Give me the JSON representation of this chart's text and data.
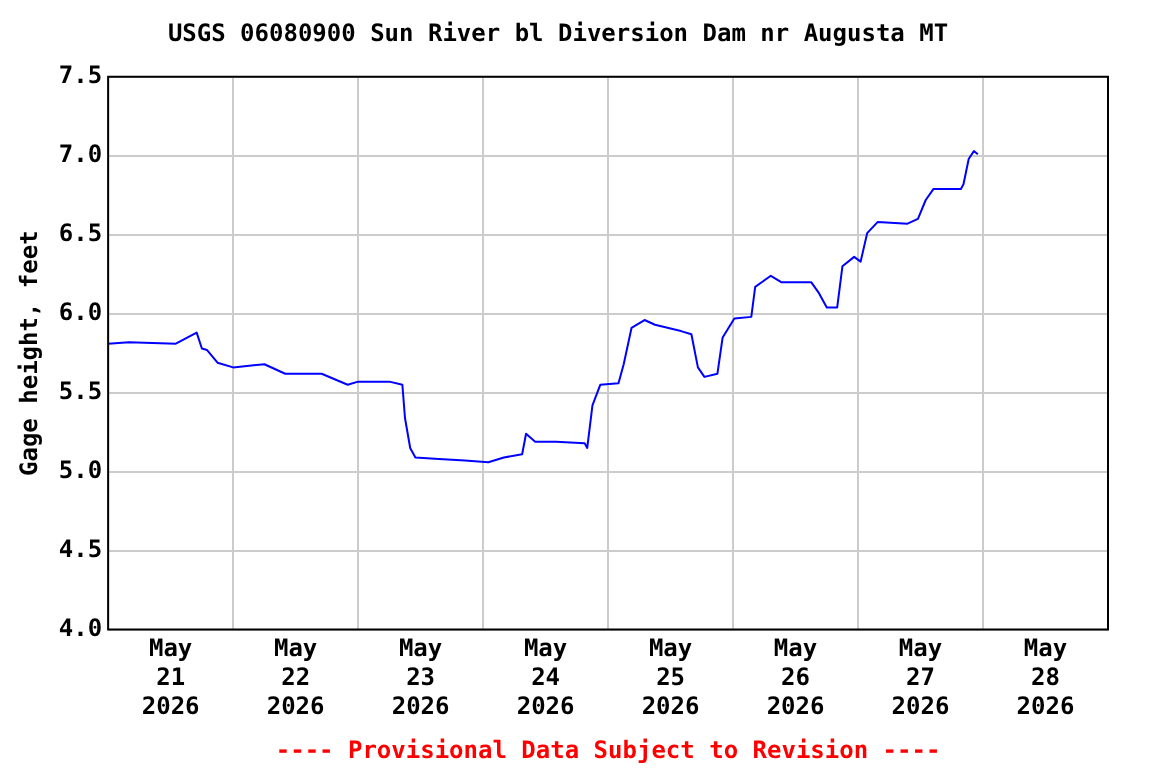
{
  "chart_data": {
    "type": "line",
    "title": "USGS 06080900 Sun River bl Diversion Dam nr Augusta MT",
    "ylabel": "Gage height, feet",
    "annotations": [
      "---- Provisional Data Subject to Revision ----"
    ],
    "x": [
      "2026-05-21T00:00",
      "2026-05-21T04:00",
      "2026-05-21T13:00",
      "2026-05-21T17:00",
      "2026-05-21T18:00",
      "2026-05-21T19:00",
      "2026-05-21T21:00",
      "2026-05-22T00:00",
      "2026-05-22T06:00",
      "2026-05-22T10:00",
      "2026-05-22T17:00",
      "2026-05-22T22:00",
      "2026-05-23T00:00",
      "2026-05-23T06:00",
      "2026-05-23T08:30",
      "2026-05-23T09:00",
      "2026-05-23T10:00",
      "2026-05-23T11:00",
      "2026-05-23T15:30",
      "2026-05-23T20:30",
      "2026-05-24T01:00",
      "2026-05-24T04:00",
      "2026-05-24T07:30",
      "2026-05-24T08:15",
      "2026-05-24T10:00",
      "2026-05-24T14:00",
      "2026-05-24T19:30",
      "2026-05-24T20:00",
      "2026-05-24T21:00",
      "2026-05-24T22:30",
      "2026-05-25T02:00",
      "2026-05-25T03:00",
      "2026-05-25T04:30",
      "2026-05-25T07:00",
      "2026-05-25T09:00",
      "2026-05-25T14:00",
      "2026-05-25T16:00",
      "2026-05-25T17:15",
      "2026-05-25T18:30",
      "2026-05-25T21:00",
      "2026-05-25T22:00",
      "2026-05-26T00:15",
      "2026-05-26T03:30",
      "2026-05-26T04:15",
      "2026-05-26T07:15",
      "2026-05-26T09:15",
      "2026-05-26T15:00",
      "2026-05-26T16:30",
      "2026-05-26T18:00",
      "2026-05-26T20:00",
      "2026-05-26T21:00",
      "2026-05-26T23:15",
      "2026-05-27T00:30",
      "2026-05-27T01:45",
      "2026-05-27T03:45",
      "2026-05-27T09:30",
      "2026-05-27T11:30",
      "2026-05-27T13:00",
      "2026-05-27T14:30",
      "2026-05-27T19:45",
      "2026-05-27T20:15",
      "2026-05-27T21:15",
      "2026-05-27T22:15",
      "2026-05-27T23:00"
    ],
    "series": [
      {
        "color": "#0000ff",
        "values": [
          5.81,
          5.82,
          5.81,
          5.88,
          5.78,
          5.77,
          5.69,
          5.66,
          5.68,
          5.62,
          5.62,
          5.55,
          5.57,
          5.57,
          5.55,
          5.34,
          5.15,
          5.09,
          5.08,
          5.07,
          5.06,
          5.09,
          5.11,
          5.24,
          5.19,
          5.19,
          5.18,
          5.15,
          5.42,
          5.55,
          5.56,
          5.68,
          5.91,
          5.96,
          5.93,
          5.89,
          5.87,
          5.66,
          5.6,
          5.62,
          5.85,
          5.97,
          5.98,
          6.17,
          6.24,
          6.2,
          6.2,
          6.13,
          6.04,
          6.04,
          6.3,
          6.36,
          6.33,
          6.51,
          6.58,
          6.57,
          6.6,
          6.72,
          6.79,
          6.79,
          6.82,
          6.98,
          7.03,
          7.01
        ]
      }
    ],
    "xlim": [
      "2026-05-21T00:00",
      "2026-05-29T00:00"
    ],
    "xticks": [
      {
        "value": "2026-05-21T00:00",
        "label": null
      },
      {
        "value": "2026-05-21T12:00",
        "label": "May\n21\n2026"
      },
      {
        "value": "2026-05-22T00:00",
        "label": null
      },
      {
        "value": "2026-05-22T12:00",
        "label": "May\n22\n2026"
      },
      {
        "value": "2026-05-23T00:00",
        "label": null
      },
      {
        "value": "2026-05-23T12:00",
        "label": "May\n23\n2026"
      },
      {
        "value": "2026-05-24T00:00",
        "label": null
      },
      {
        "value": "2026-05-24T12:00",
        "label": "May\n24\n2026"
      },
      {
        "value": "2026-05-25T00:00",
        "label": null
      },
      {
        "value": "2026-05-25T12:00",
        "label": "May\n25\n2026"
      },
      {
        "value": "2026-05-26T00:00",
        "label": null
      },
      {
        "value": "2026-05-26T12:00",
        "label": "May\n26\n2026"
      },
      {
        "value": "2026-05-27T00:00",
        "label": null
      },
      {
        "value": "2026-05-27T12:00",
        "label": "May\n27\n2026"
      },
      {
        "value": "2026-05-28T00:00",
        "label": null
      },
      {
        "value": "2026-05-28T12:00",
        "label": "May\n28\n2026"
      },
      {
        "value": "2026-05-29T00:00",
        "label": null
      }
    ],
    "ylim": [
      4.0,
      7.5
    ],
    "yticks": [
      {
        "value": 4.0,
        "label": "4.0"
      },
      {
        "value": 4.5,
        "label": "4.5"
      },
      {
        "value": 5.0,
        "label": "5.0"
      },
      {
        "value": 5.5,
        "label": "5.5"
      },
      {
        "value": 6.0,
        "label": "6.0"
      },
      {
        "value": 6.5,
        "label": "6.5"
      },
      {
        "value": 7.0,
        "label": "7.0"
      },
      {
        "value": 7.5,
        "label": "7.5"
      }
    ],
    "grid": true,
    "legend": false,
    "marker": "none",
    "line_style": "solid"
  }
}
